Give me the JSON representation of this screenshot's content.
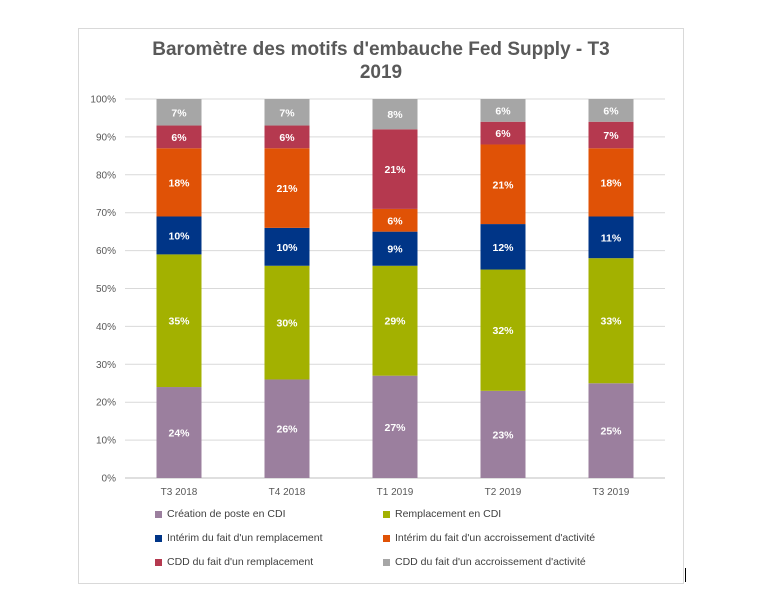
{
  "chart_data": {
    "type": "bar",
    "stacked": true,
    "title_line1": "Baromètre des motifs d'embauche Fed Supply - T3",
    "title_line2": "2019",
    "categories": [
      "T3 2018",
      "T4 2018",
      "T1 2019",
      "T2 2019",
      "T3 2019"
    ],
    "y_ticks": [
      "0%",
      "10%",
      "20%",
      "30%",
      "40%",
      "50%",
      "60%",
      "70%",
      "80%",
      "90%",
      "100%"
    ],
    "ylim": [
      0,
      100
    ],
    "grid": true,
    "legend_position": "bottom",
    "series": [
      {
        "name": "Création de poste en CDI",
        "color": "#9b7f9e",
        "values": [
          24,
          26,
          27,
          23,
          25
        ],
        "labels": [
          "24%",
          "26%",
          "27%",
          "23%",
          "25%"
        ]
      },
      {
        "name": "Remplacement en CDI",
        "color": "#a3b100",
        "values": [
          35,
          30,
          29,
          32,
          33
        ],
        "labels": [
          "35%",
          "30%",
          "29%",
          "32%",
          "33%"
        ]
      },
      {
        "name": "Intérim du fait d'un remplacement",
        "color": "#003587",
        "values": [
          10,
          10,
          9,
          12,
          11
        ],
        "labels": [
          "10%",
          "10%",
          "9%",
          "12%",
          "11%"
        ]
      },
      {
        "name": "Intérim du fait d'un accroissement d'activité",
        "color": "#e05206",
        "values": [
          18,
          21,
          6,
          21,
          18
        ],
        "labels": [
          "18%",
          "21%",
          "6%",
          "21%",
          "18%"
        ]
      },
      {
        "name": "CDD du fait d'un remplacement",
        "color": "#b5394f",
        "values": [
          6,
          6,
          21,
          6,
          7
        ],
        "labels": [
          "6%",
          "6%",
          "21%",
          "6%",
          "7%"
        ]
      },
      {
        "name": "CDD du fait d'un accroissement d'activité",
        "color": "#a6a6a6",
        "values": [
          7,
          7,
          8,
          6,
          6
        ],
        "labels": [
          "7%",
          "7%",
          "8%",
          "6%",
          "6%"
        ]
      }
    ]
  }
}
